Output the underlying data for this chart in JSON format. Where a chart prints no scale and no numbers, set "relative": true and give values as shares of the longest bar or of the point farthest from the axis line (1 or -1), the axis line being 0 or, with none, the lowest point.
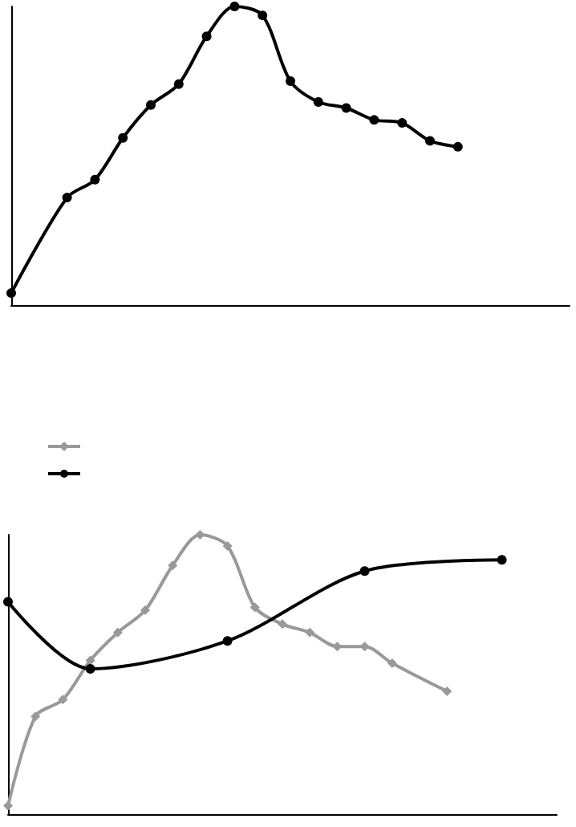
{
  "chart_data": [
    {
      "type": "line",
      "relative": true,
      "marker": "circle",
      "categories": [
        null,
        null,
        null,
        null,
        null,
        null,
        null,
        null,
        null,
        null,
        null,
        null,
        null,
        null,
        null,
        null,
        null,
        null,
        null,
        null,
        null
      ],
      "series": [
        {
          "color": "#000000",
          "values": [
            0.04,
            null,
            0.36,
            0.42,
            0.56,
            0.67,
            0.74,
            0.9,
            1,
            0.97,
            0.75,
            0.68,
            0.66,
            0.62,
            0.61,
            0.55,
            0.53,
            null,
            null,
            null,
            null
          ]
        }
      ]
    },
    {
      "type": "line",
      "relative": true,
      "categories": [
        null,
        null,
        null,
        null,
        null,
        null,
        null,
        null,
        null,
        null,
        null,
        null,
        null,
        null,
        null,
        null,
        null,
        null,
        null,
        null,
        null
      ],
      "series": [
        {
          "color": "#999999",
          "marker": "diamond",
          "values": [
            0.03,
            0.35,
            0.41,
            0.55,
            0.65,
            0.73,
            0.89,
            1,
            0.96,
            0.74,
            0.68,
            0.65,
            0.6,
            0.6,
            0.54,
            null,
            0.44,
            null,
            null,
            null,
            null
          ]
        },
        {
          "color": "#000000",
          "marker": "circle",
          "values": [
            0.76,
            null,
            null,
            0.52,
            null,
            null,
            null,
            null,
            0.62,
            null,
            null,
            null,
            null,
            0.87,
            null,
            null,
            null,
            null,
            0.91,
            null,
            null
          ]
        }
      ]
    }
  ]
}
